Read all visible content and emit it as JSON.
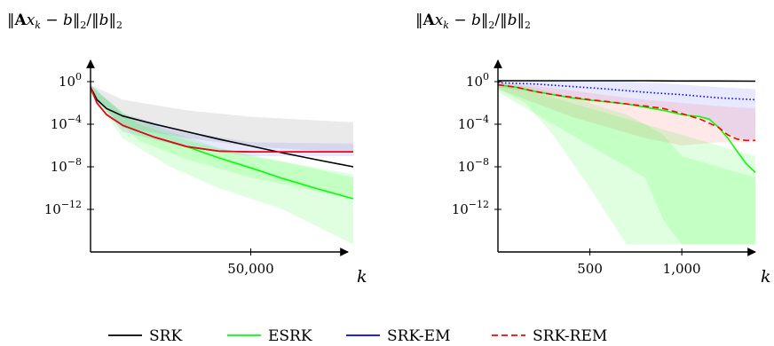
{
  "legend": {
    "items": [
      {
        "label": "SRK",
        "color": "#000000",
        "dash": "solid"
      },
      {
        "label": "ESRK",
        "color": "#00ff00",
        "dash": "solid"
      },
      {
        "label": "SRK-EM",
        "color": "#0000ff",
        "dash": "solid"
      },
      {
        "label": "SRK-REM",
        "color": "#ff0000",
        "dash": "dashed"
      }
    ]
  },
  "chart_data": [
    {
      "type": "line",
      "ylabel": "‖Ax_k − b‖₂/‖b‖₂",
      "xlabel": "k",
      "yscale": "log",
      "xlim": [
        0,
        82000
      ],
      "ylim": [
        1e-16,
        100.0
      ],
      "xticks": [
        50000
      ],
      "xtick_labels": [
        "50,000"
      ],
      "yticks": [
        1,
        0.0001,
        1e-08,
        1e-12
      ],
      "grid": false,
      "series": [
        {
          "name": "SRK",
          "color": "#000000",
          "x": [
            0,
            2000,
            5000,
            10000,
            20000,
            30000,
            40000,
            50000,
            60000,
            70000,
            82000
          ],
          "y": [
            0.3,
            0.02,
            0.003,
            0.0006,
            0.0001,
            2e-05,
            4e-06,
            9e-07,
            2e-07,
            5e-08,
            1e-08
          ]
        },
        {
          "name": "ESRK",
          "color": "#00ff00",
          "x": [
            0,
            2000,
            5000,
            10000,
            20000,
            30000,
            40000,
            50000,
            60000,
            70000,
            82000
          ],
          "y": [
            0.3,
            0.01,
            0.0008,
            8e-05,
            6e-06,
            8e-07,
            7e-08,
            8e-09,
            8e-10,
            1e-10,
            1e-11
          ]
        },
        {
          "name": "SRK-EM",
          "color": "#0000ff",
          "x": [
            0,
            2000,
            5000,
            10000,
            20000,
            30000,
            40000,
            50000,
            60000,
            70000,
            82000
          ],
          "y": [
            0.3,
            0.01,
            0.0008,
            8e-05,
            6e-06,
            8e-07,
            3e-07,
            2.5e-07,
            2.5e-07,
            2.5e-07,
            2.5e-07
          ]
        },
        {
          "name": "SRK-REM",
          "color": "#ff0000",
          "x": [
            0,
            2000,
            5000,
            10000,
            20000,
            30000,
            40000,
            50000,
            60000,
            70000,
            82000
          ],
          "y": [
            0.3,
            0.01,
            0.0008,
            8e-05,
            6e-06,
            8e-07,
            3e-07,
            2.5e-07,
            2.5e-07,
            2.5e-07,
            2.5e-07
          ]
        }
      ],
      "bands": [
        {
          "color": "#aaaaaa",
          "opacity": 0.25,
          "x": [
            0,
            10000,
            30000,
            50000,
            82000
          ],
          "upper": [
            0.5,
            0.02,
            0.002,
            0.0005,
            0.00015
          ],
          "lower": [
            0.1,
            5e-05,
            5e-06,
            8e-07,
            2e-07
          ]
        },
        {
          "color": "#6666ff",
          "opacity": 0.15,
          "x": [
            0,
            10000,
            30000,
            50000,
            82000
          ],
          "upper": [
            0.5,
            0.001,
            2e-05,
            2e-06,
            1.5e-06
          ],
          "lower": [
            0.1,
            2e-05,
            6e-07,
            1e-07,
            1e-07
          ]
        },
        {
          "color": "#00ff00",
          "opacity": 0.12,
          "x": [
            0,
            10000,
            25000,
            40000,
            60000,
            82000
          ],
          "upper": [
            0.5,
            0.001,
            2e-05,
            6e-07,
            3e-08,
            1e-09
          ],
          "lower": [
            0.1,
            5e-06,
            1e-08,
            1e-10,
            1e-12,
            5e-16
          ]
        },
        {
          "color": "#00ff00",
          "opacity": 0.12,
          "x": [
            0,
            15000,
            30000,
            50000,
            82000
          ],
          "upper": [
            0.3,
            0.0001,
            3e-06,
            1e-07,
            2e-09
          ],
          "lower": [
            0.05,
            3e-06,
            5e-08,
            1e-09,
            1e-11
          ]
        }
      ]
    },
    {
      "type": "line",
      "ylabel": "‖Ax_k − b‖₂/‖b‖₂",
      "xlabel": "k",
      "yscale": "log",
      "xlim": [
        0,
        1400
      ],
      "ylim": [
        1e-16,
        100.0
      ],
      "xticks": [
        500,
        1000
      ],
      "xtick_labels": [
        "500",
        "1,000"
      ],
      "yticks": [
        1,
        0.0001,
        1e-08,
        1e-12
      ],
      "grid": false,
      "series": [
        {
          "name": "SRK",
          "color": "#000000",
          "x": [
            0,
            200,
            400,
            600,
            800,
            1000,
            1200,
            1400
          ],
          "y": [
            1.2,
            1.2,
            1.2,
            1.2,
            1.2,
            1.15,
            1.15,
            1.1
          ]
        },
        {
          "name": "ESRK",
          "color": "#00ff00",
          "x": [
            0,
            100,
            200,
            300,
            400,
            500,
            600,
            700,
            800,
            900,
            1000,
            1100,
            1150,
            1200,
            1250,
            1300,
            1350,
            1400
          ],
          "y": [
            0.5,
            0.3,
            0.12,
            0.06,
            0.03,
            0.018,
            0.012,
            0.008,
            0.004,
            0.002,
            0.0008,
            0.0005,
            0.0003,
            5e-05,
            5e-06,
            3e-07,
            2e-08,
            3e-09
          ]
        },
        {
          "name": "SRK-EM",
          "color": "#0000ff",
          "dash": "dotted",
          "x": [
            0,
            200,
            400,
            600,
            800,
            1000,
            1200,
            1400
          ],
          "y": [
            0.8,
            0.6,
            0.35,
            0.2,
            0.1,
            0.06,
            0.03,
            0.02
          ]
        },
        {
          "name": "SRK-REM",
          "color": "#ff0000",
          "dash": "dashed",
          "x": [
            0,
            100,
            200,
            300,
            400,
            500,
            600,
            700,
            800,
            900,
            1000,
            1100,
            1200,
            1250,
            1300,
            1350,
            1400
          ],
          "y": [
            0.5,
            0.3,
            0.12,
            0.06,
            0.035,
            0.02,
            0.013,
            0.008,
            0.005,
            0.003,
            0.001,
            0.0003,
            5e-05,
            1e-05,
            4e-06,
            3e-06,
            3e-06
          ]
        }
      ],
      "bands": [
        {
          "color": "#6666ff",
          "opacity": 0.15,
          "x": [
            0,
            300,
            600,
            900,
            1100,
            1200,
            1300,
            1400
          ],
          "upper": [
            1.5,
            1.3,
            1.1,
            0.7,
            0.4,
            0.3,
            0.25,
            0.2
          ],
          "lower": [
            0.3,
            0.05,
            0.01,
            0.003,
            0.0005,
            5e-05,
            5e-06,
            3e-06
          ]
        },
        {
          "color": "#ff6666",
          "opacity": 0.15,
          "x": [
            0,
            200,
            400,
            600,
            800,
            1000,
            1200,
            1400
          ],
          "upper": [
            0.8,
            0.4,
            0.15,
            0.05,
            0.02,
            0.01,
            0.005,
            0.003
          ],
          "lower": [
            0.2,
            0.01,
            0.0005,
            5e-05,
            5e-06,
            1e-06,
            2e-06,
            2e-06
          ]
        },
        {
          "color": "#00ff00",
          "opacity": 0.12,
          "x": [
            0,
            150,
            300,
            500,
            700,
            800,
            1000,
            1200,
            1400
          ],
          "upper": [
            0.8,
            0.4,
            0.1,
            0.01,
            0.0008,
            0.0001,
            1e-05,
            1e-06,
            1e-07
          ],
          "lower": [
            0.2,
            0.01,
            1e-05,
            1e-10,
            5e-16,
            5e-16,
            5e-16,
            5e-16,
            5e-16
          ]
        },
        {
          "color": "#00ff00",
          "opacity": 0.12,
          "x": [
            0,
            200,
            400,
            600,
            800,
            900,
            1000,
            1200,
            1400
          ],
          "upper": [
            0.5,
            0.1,
            0.01,
            0.001,
            0.0001,
            1e-05,
            1e-07,
            1e-08,
            1e-09
          ],
          "lower": [
            0.1,
            0.001,
            1e-05,
            1e-07,
            1e-09,
            1e-13,
            5e-16,
            5e-16,
            5e-16
          ]
        }
      ]
    }
  ]
}
